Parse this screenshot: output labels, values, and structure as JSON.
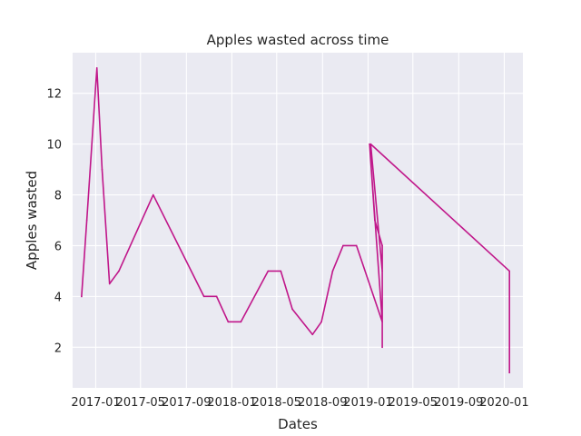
{
  "chart_data": {
    "type": "line",
    "title": "Apples wasted across time",
    "xlabel": "Dates",
    "ylabel": "Apples wasted",
    "x_axis_kind": "date",
    "xlim": [
      "2016-10-31",
      "2020-02-20"
    ],
    "ylim": [
      0.4,
      13.6
    ],
    "y_ticks": [
      2,
      4,
      6,
      8,
      10,
      12
    ],
    "x_ticks": [
      {
        "date": "2017-01-01",
        "label": "2017-01"
      },
      {
        "date": "2017-05-01",
        "label": "2017-05"
      },
      {
        "date": "2017-09-01",
        "label": "2017-09"
      },
      {
        "date": "2018-01-01",
        "label": "2018-01"
      },
      {
        "date": "2018-05-01",
        "label": "2018-05"
      },
      {
        "date": "2018-09-01",
        "label": "2018-09"
      },
      {
        "date": "2019-01-01",
        "label": "2019-01"
      },
      {
        "date": "2019-05-01",
        "label": "2019-05"
      },
      {
        "date": "2019-09-01",
        "label": "2019-09"
      },
      {
        "date": "2020-01-01",
        "label": "2020-01"
      }
    ],
    "grid": true,
    "colors": {
      "background": "#eaeaf2",
      "grid": "#ffffff",
      "line": "#c0178a",
      "text": "#262626"
    },
    "series": [
      {
        "points": [
          {
            "x": "2016-11-24",
            "y": 4
          },
          {
            "x": "2016-12-08",
            "y": 7
          },
          {
            "x": "2017-01-04",
            "y": 13
          },
          {
            "x": "2017-01-18",
            "y": 9
          },
          {
            "x": "2017-02-07",
            "y": 4.5
          },
          {
            "x": "2017-03-04",
            "y": 5
          },
          {
            "x": "2017-06-04",
            "y": 8
          },
          {
            "x": "2017-10-18",
            "y": 4
          },
          {
            "x": "2017-11-21",
            "y": 4
          },
          {
            "x": "2017-12-22",
            "y": 3
          },
          {
            "x": "2018-01-25",
            "y": 3
          },
          {
            "x": "2018-04-08",
            "y": 5
          },
          {
            "x": "2018-05-12",
            "y": 5
          },
          {
            "x": "2018-06-12",
            "y": 3.5
          },
          {
            "x": "2018-08-05",
            "y": 2.5
          },
          {
            "x": "2018-08-29",
            "y": 3
          },
          {
            "x": "2018-09-28",
            "y": 5
          },
          {
            "x": "2018-10-26",
            "y": 6
          },
          {
            "x": "2018-12-01",
            "y": 6
          },
          {
            "x": "2019-02-08",
            "y": 3
          },
          {
            "x": "2019-01-05",
            "y": 10
          },
          {
            "x": "2019-01-19",
            "y": 7
          },
          {
            "x": "2019-02-08",
            "y": 6
          },
          {
            "x": "2019-02-08",
            "y": 2
          },
          {
            "x": "2019-02-08",
            "y": 5
          },
          {
            "x": "2019-01-08",
            "y": 10
          },
          {
            "x": "2020-01-15",
            "y": 5
          },
          {
            "x": "2020-01-15",
            "y": 1
          }
        ]
      }
    ]
  }
}
